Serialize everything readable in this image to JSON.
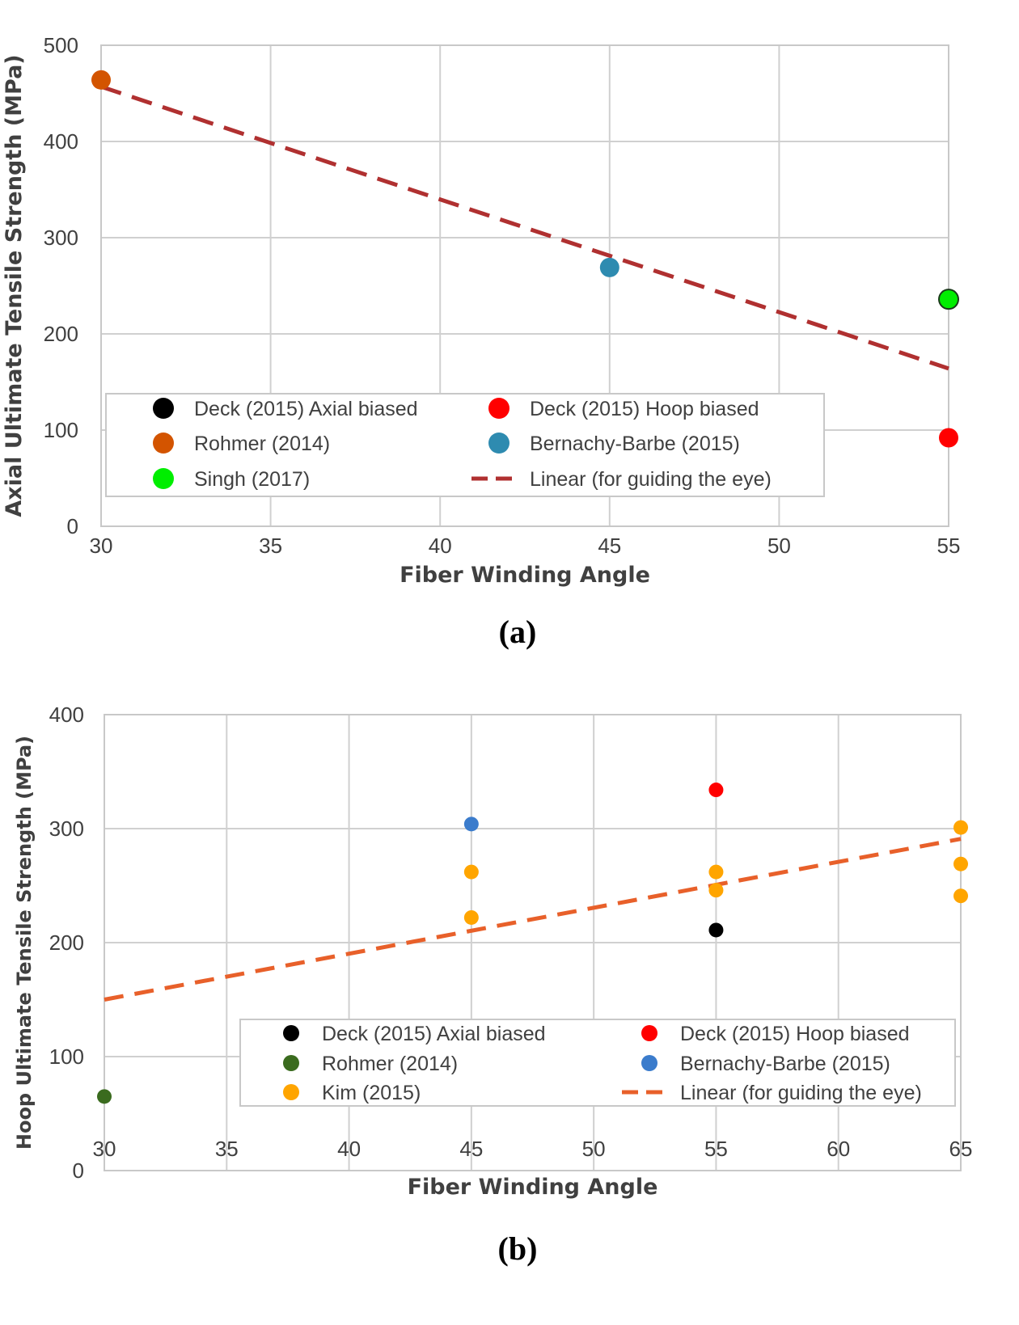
{
  "chart_data": [
    {
      "id": "a",
      "type": "scatter",
      "caption": "(a)",
      "title": "",
      "xlabel": "Fiber Winding Angle",
      "ylabel": "Axial Ultimate Tensile Strength (MPa)",
      "xlim": [
        30,
        55
      ],
      "ylim": [
        0,
        500
      ],
      "xticks": [
        30,
        35,
        40,
        45,
        50,
        55
      ],
      "yticks": [
        0,
        100,
        200,
        300,
        400,
        500
      ],
      "grid": true,
      "legend_placement": "bottom-center",
      "series": [
        {
          "name": "Deck (2015) Axial biased",
          "color": "#000000",
          "points": []
        },
        {
          "name": "Deck (2015) Hoop biased",
          "color": "#ff0000",
          "points": [
            [
              55,
              92
            ]
          ]
        },
        {
          "name": "Rohmer (2014)",
          "color": "#d35400",
          "points": [
            [
              30,
              464
            ]
          ]
        },
        {
          "name": "Bernachy-Barbe (2015)",
          "color": "#2e8bb0",
          "points": [
            [
              45,
              269
            ]
          ]
        },
        {
          "name": "Singh (2017)",
          "color": "#00ee00",
          "outline": "#1a3a1a",
          "points": [
            [
              55,
              236
            ]
          ]
        }
      ],
      "trendline": {
        "name": "Linear (for guiding the eye)",
        "color": "#b03030",
        "points": [
          [
            30,
            457
          ],
          [
            55,
            164
          ]
        ]
      },
      "legend_order": [
        [
          "Deck (2015) Axial biased",
          "Deck (2015) Hoop biased"
        ],
        [
          "Rohmer (2014)",
          "Bernachy-Barbe (2015)"
        ],
        [
          "Singh (2017)",
          "Linear (for guiding the eye)"
        ]
      ]
    },
    {
      "id": "b",
      "type": "scatter",
      "caption": "(b)",
      "title": "",
      "xlabel": "Fiber Winding Angle",
      "ylabel": "Hoop Ultimate Tensile Strength (MPa)",
      "xlim": [
        30,
        65
      ],
      "ylim": [
        0,
        400
      ],
      "xticks": [
        30,
        35,
        40,
        45,
        50,
        55,
        60,
        65
      ],
      "yticks": [
        0,
        100,
        200,
        300,
        400
      ],
      "grid": true,
      "legend_placement": "bottom-right",
      "series": [
        {
          "name": "Deck (2015) Axial biased",
          "color": "#000000",
          "points": [
            [
              55,
              211
            ]
          ]
        },
        {
          "name": "Deck (2015) Hoop biased",
          "color": "#ff0000",
          "points": [
            [
              55,
              334
            ]
          ]
        },
        {
          "name": "Rohmer (2014)",
          "color": "#3a6b1e",
          "points": [
            [
              30,
              65
            ]
          ]
        },
        {
          "name": "Bernachy-Barbe (2015)",
          "color": "#3b7ccc",
          "points": [
            [
              45,
              304
            ]
          ]
        },
        {
          "name": "Kim (2015)",
          "color": "#ffa500",
          "points": [
            [
              45,
              262
            ],
            [
              45,
              222
            ],
            [
              55,
              262
            ],
            [
              55,
              246
            ],
            [
              65,
              301
            ],
            [
              65,
              269
            ],
            [
              65,
              241
            ]
          ]
        }
      ],
      "trendline": {
        "name": "Linear  (for guiding the eye)",
        "color": "#e8602a",
        "points": [
          [
            30,
            150
          ],
          [
            65,
            291
          ]
        ]
      },
      "legend_order": [
        [
          "Deck (2015) Axial biased",
          "Deck (2015) Hoop biased"
        ],
        [
          "Rohmer (2014)",
          "Bernachy-Barbe (2015)"
        ],
        [
          "Kim (2015)",
          "Linear  (for guiding the eye)"
        ]
      ]
    }
  ]
}
